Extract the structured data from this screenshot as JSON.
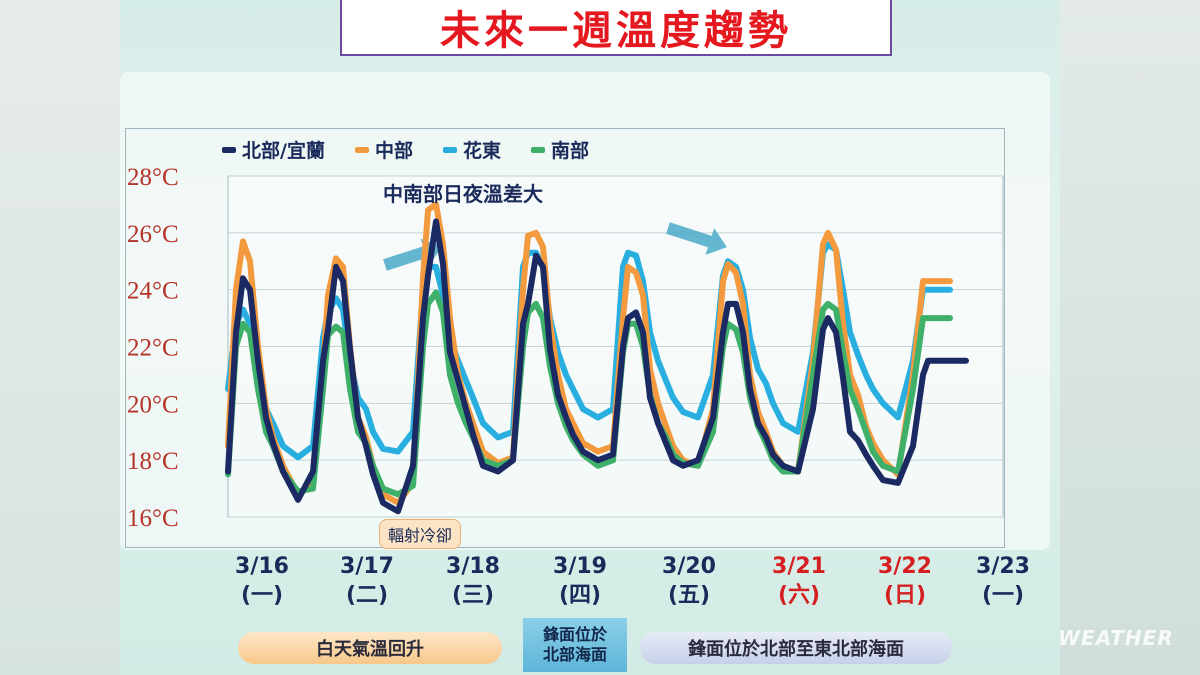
{
  "title": "未來一週溫度趨勢",
  "legend": [
    {
      "name": "北部/宜蘭",
      "color": "#1b2a63"
    },
    {
      "name": "中部",
      "color": "#f39a3e"
    },
    {
      "name": "花東",
      "color": "#29aee0"
    },
    {
      "name": "南部",
      "color": "#3fb06a"
    }
  ],
  "annotations": {
    "top": "中南部日夜溫差大",
    "bottom": "輻射冷卻"
  },
  "notes": {
    "daytime": "白天氣溫回升",
    "front1_line1": "鋒面位於",
    "front1_line2": "北部海面",
    "front2": "鋒面位於北部至東北部海面"
  },
  "watermark": "WEATHER",
  "weekend_color": "#d42020",
  "chart_data": {
    "type": "line",
    "title": "未來一週溫度趨勢",
    "y_tick_labels": [
      "28°C",
      "26°C",
      "24°C",
      "22°C",
      "20°C",
      "18°C",
      "16°C"
    ],
    "ylim": [
      16,
      28
    ],
    "y_ticks": [
      28,
      26,
      24,
      22,
      20,
      18,
      16
    ],
    "categories": [
      {
        "date": "3/16",
        "weekday": "(一)",
        "weekend": false
      },
      {
        "date": "3/17",
        "weekday": "(二)",
        "weekend": false
      },
      {
        "date": "3/18",
        "weekday": "(三)",
        "weekend": false
      },
      {
        "date": "3/19",
        "weekday": "(四)",
        "weekend": false
      },
      {
        "date": "3/20",
        "weekday": "(五)",
        "weekend": false
      },
      {
        "date": "3/21",
        "weekday": "(六)",
        "weekend": true
      },
      {
        "date": "3/22",
        "weekday": "(日)",
        "weekend": true
      },
      {
        "date": "3/23",
        "weekday": "(一)",
        "weekend": false
      }
    ],
    "x_unit": "day",
    "x_range": [
      0,
      7.75
    ],
    "grid": true,
    "series": [
      {
        "name": "北部/宜蘭",
        "color": "#1b2a63",
        "x": [
          0.0,
          0.08,
          0.15,
          0.22,
          0.3,
          0.38,
          0.45,
          0.55,
          0.7,
          0.85,
          0.95,
          1.0,
          1.08,
          1.15,
          1.22,
          1.3,
          1.38,
          1.45,
          1.55,
          1.7,
          1.85,
          1.95,
          2.0,
          2.08,
          2.15,
          2.22,
          2.3,
          2.38,
          2.45,
          2.55,
          2.7,
          2.85,
          2.95,
          3.0,
          3.08,
          3.15,
          3.22,
          3.3,
          3.38,
          3.45,
          3.55,
          3.7,
          3.85,
          3.95,
          4.0,
          4.08,
          4.15,
          4.22,
          4.3,
          4.38,
          4.45,
          4.55,
          4.7,
          4.85,
          4.95,
          5.0,
          5.08,
          5.15,
          5.22,
          5.3,
          5.38,
          5.45,
          5.55,
          5.7,
          5.85,
          5.95,
          6.0,
          6.08,
          6.15,
          6.22,
          6.3,
          6.38,
          6.45,
          6.55,
          6.7,
          6.85,
          6.95,
          7.0,
          7.08,
          7.15,
          7.22,
          7.3,
          7.38
        ],
        "y": [
          17.6,
          22.5,
          24.4,
          24.0,
          21.5,
          19.5,
          18.6,
          17.6,
          16.6,
          17.6,
          21.5,
          22.6,
          24.8,
          24.3,
          21.9,
          19.5,
          18.5,
          17.5,
          16.5,
          16.2,
          17.8,
          23.0,
          24.5,
          26.4,
          24.9,
          21.8,
          20.8,
          19.8,
          18.9,
          17.8,
          17.6,
          18.0,
          22.8,
          23.5,
          25.2,
          24.8,
          21.9,
          20.3,
          19.5,
          18.9,
          18.3,
          18.0,
          18.2,
          22.0,
          23.0,
          23.2,
          22.5,
          20.2,
          19.3,
          18.6,
          18.0,
          17.8,
          18.0,
          19.5,
          22.5,
          23.5,
          23.5,
          22.5,
          20.5,
          19.3,
          18.8,
          18.2,
          17.8,
          17.6,
          19.8,
          22.6,
          23.0,
          22.5,
          20.9,
          19.0,
          18.7,
          18.2,
          17.8,
          17.3,
          17.2,
          18.5,
          21.0,
          21.5,
          21.5,
          21.5,
          21.5,
          21.5,
          21.5
        ]
      },
      {
        "name": "中部",
        "color": "#f39a3e",
        "x": [
          0.0,
          0.08,
          0.15,
          0.22,
          0.3,
          0.38,
          0.45,
          0.55,
          0.7,
          0.85,
          0.95,
          1.0,
          1.08,
          1.15,
          1.22,
          1.3,
          1.38,
          1.45,
          1.55,
          1.7,
          1.85,
          1.95,
          2.0,
          2.08,
          2.15,
          2.22,
          2.3,
          2.38,
          2.45,
          2.55,
          2.7,
          2.85,
          2.95,
          3.0,
          3.08,
          3.15,
          3.22,
          3.3,
          3.38,
          3.45,
          3.55,
          3.7,
          3.85,
          3.95,
          4.0,
          4.08,
          4.15,
          4.22,
          4.3,
          4.38,
          4.45,
          4.55,
          4.7,
          4.85,
          4.95,
          5.0,
          5.08,
          5.15,
          5.22,
          5.3,
          5.38,
          5.45,
          5.55,
          5.7,
          5.85,
          5.95,
          6.0,
          6.08,
          6.15,
          6.22,
          6.3,
          6.38,
          6.45,
          6.55,
          6.7,
          6.85,
          6.95,
          7.0,
          7.08,
          7.15,
          7.22
        ],
        "y": [
          18.5,
          24.0,
          25.7,
          25.0,
          22.0,
          19.8,
          18.8,
          17.8,
          16.8,
          17.2,
          21.2,
          23.8,
          25.1,
          24.8,
          22.0,
          19.5,
          18.8,
          17.8,
          16.8,
          16.5,
          17.2,
          24.4,
          26.8,
          27.0,
          25.6,
          23.0,
          21.0,
          20.0,
          19.3,
          18.3,
          17.9,
          18.1,
          24.0,
          25.9,
          26.0,
          25.5,
          22.8,
          21.0,
          19.8,
          19.3,
          18.6,
          18.3,
          18.5,
          23.0,
          24.8,
          24.6,
          23.8,
          21.2,
          20.0,
          19.2,
          18.5,
          18.0,
          17.8,
          19.8,
          24.3,
          24.9,
          24.6,
          23.5,
          21.0,
          19.7,
          19.0,
          18.3,
          17.8,
          17.6,
          21.5,
          25.6,
          26.0,
          25.4,
          22.8,
          21.0,
          20.3,
          19.2,
          18.6,
          18.0,
          17.5,
          21.0,
          24.3,
          24.3,
          24.3,
          24.3,
          24.3
        ]
      },
      {
        "name": "花東",
        "color": "#29aee0",
        "x": [
          0.0,
          0.08,
          0.15,
          0.22,
          0.3,
          0.38,
          0.45,
          0.55,
          0.7,
          0.85,
          0.95,
          1.0,
          1.08,
          1.15,
          1.22,
          1.3,
          1.38,
          1.45,
          1.55,
          1.7,
          1.85,
          1.95,
          2.0,
          2.08,
          2.15,
          2.22,
          2.3,
          2.38,
          2.45,
          2.55,
          2.7,
          2.85,
          2.95,
          3.0,
          3.08,
          3.15,
          3.22,
          3.3,
          3.38,
          3.45,
          3.55,
          3.7,
          3.85,
          3.95,
          4.0,
          4.08,
          4.15,
          4.22,
          4.3,
          4.38,
          4.45,
          4.55,
          4.7,
          4.85,
          4.95,
          5.0,
          5.08,
          5.15,
          5.22,
          5.3,
          5.38,
          5.45,
          5.55,
          5.7,
          5.85,
          5.95,
          6.0,
          6.08,
          6.15,
          6.22,
          6.3,
          6.38,
          6.45,
          6.55,
          6.7,
          6.85,
          6.95,
          7.0,
          7.08,
          7.15,
          7.22
        ],
        "y": [
          20.5,
          22.8,
          23.3,
          22.8,
          21.0,
          19.8,
          19.3,
          18.5,
          18.1,
          18.5,
          22.3,
          23.2,
          23.7,
          23.3,
          21.5,
          20.2,
          19.8,
          19.0,
          18.4,
          18.3,
          19.0,
          24.0,
          24.8,
          24.8,
          23.8,
          22.3,
          21.5,
          20.8,
          20.2,
          19.3,
          18.8,
          19.0,
          24.8,
          25.3,
          25.3,
          24.8,
          23.0,
          21.8,
          21.0,
          20.5,
          19.8,
          19.5,
          19.8,
          24.8,
          25.3,
          25.2,
          24.3,
          22.5,
          21.5,
          20.8,
          20.2,
          19.7,
          19.5,
          21.0,
          24.5,
          25.0,
          24.8,
          24.0,
          22.3,
          21.2,
          20.7,
          20.0,
          19.3,
          19.0,
          21.8,
          25.3,
          25.6,
          25.4,
          24.0,
          22.5,
          21.7,
          21.0,
          20.5,
          20.0,
          19.5,
          21.5,
          24.0,
          24.0,
          24.0,
          24.0,
          24.0
        ]
      },
      {
        "name": "南部",
        "color": "#3fb06a",
        "x": [
          0.0,
          0.08,
          0.15,
          0.22,
          0.3,
          0.38,
          0.45,
          0.55,
          0.7,
          0.85,
          0.95,
          1.0,
          1.08,
          1.15,
          1.22,
          1.3,
          1.38,
          1.45,
          1.55,
          1.7,
          1.85,
          1.95,
          2.0,
          2.08,
          2.15,
          2.22,
          2.3,
          2.38,
          2.45,
          2.55,
          2.7,
          2.85,
          2.95,
          3.0,
          3.08,
          3.15,
          3.22,
          3.3,
          3.38,
          3.45,
          3.55,
          3.7,
          3.85,
          3.95,
          4.0,
          4.08,
          4.15,
          4.22,
          4.3,
          4.38,
          4.45,
          4.55,
          4.7,
          4.85,
          4.95,
          5.0,
          5.08,
          5.15,
          5.22,
          5.3,
          5.38,
          5.45,
          5.55,
          5.7,
          5.85,
          5.95,
          6.0,
          6.08,
          6.15,
          6.22,
          6.3,
          6.38,
          6.45,
          6.55,
          6.7,
          6.85,
          6.95,
          7.0,
          7.08,
          7.15,
          7.22
        ],
        "y": [
          17.5,
          22.0,
          22.8,
          22.5,
          20.5,
          19.0,
          18.5,
          17.6,
          16.9,
          17.0,
          20.5,
          22.4,
          22.7,
          22.5,
          20.5,
          19.0,
          18.6,
          17.8,
          17.0,
          16.8,
          17.1,
          22.0,
          23.5,
          23.9,
          23.2,
          21.0,
          20.0,
          19.3,
          18.8,
          18.0,
          17.8,
          18.0,
          22.0,
          23.2,
          23.5,
          23.0,
          21.3,
          20.0,
          19.2,
          18.7,
          18.2,
          17.8,
          18.0,
          21.8,
          22.8,
          22.8,
          22.0,
          20.3,
          19.3,
          18.8,
          18.2,
          17.9,
          17.8,
          19.0,
          22.0,
          22.8,
          22.6,
          21.8,
          20.2,
          19.2,
          18.6,
          18.0,
          17.6,
          17.6,
          21.0,
          23.3,
          23.5,
          23.3,
          21.8,
          20.5,
          19.8,
          19.0,
          18.3,
          17.8,
          17.6,
          20.5,
          23.0,
          23.0,
          23.0,
          23.0,
          23.0
        ]
      }
    ]
  }
}
